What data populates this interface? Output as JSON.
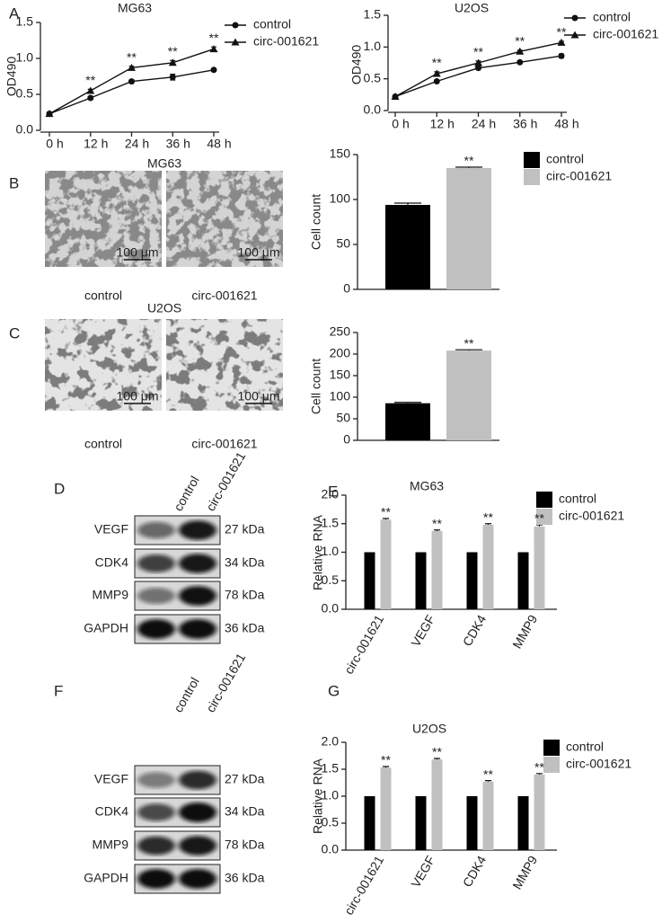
{
  "panel_labels": [
    "A",
    "B",
    "C",
    "D",
    "E",
    "F",
    "G"
  ],
  "micrographs": [
    {
      "title": "MG63",
      "scale_bar": "100 μm",
      "captions": [
        "control",
        "circ-001621"
      ]
    },
    {
      "title": "U2OS",
      "scale_bar": "100 μm",
      "captions": [
        "control",
        "circ-001621"
      ]
    }
  ],
  "blots": [
    {
      "columns": [
        "control",
        "circ-001621"
      ],
      "rows": [
        {
          "protein": "VEGF",
          "size": "27 kDa"
        },
        {
          "protein": "CDK4",
          "size": "34 kDa"
        },
        {
          "protein": "MMP9",
          "size": "78 kDa"
        },
        {
          "protein": "GAPDH",
          "size": "36 kDa"
        }
      ]
    },
    {
      "columns": [
        "control",
        "circ-001621"
      ],
      "rows": [
        {
          "protein": "VEGF",
          "size": "27 kDa"
        },
        {
          "protein": "CDK4",
          "size": "34 kDa"
        },
        {
          "protein": "MMP9",
          "size": "78 kDa"
        },
        {
          "protein": "GAPDH",
          "size": "36 kDa"
        }
      ]
    }
  ],
  "chart_data": [
    {
      "type": "line",
      "title": "MG63",
      "y_label": "OD490",
      "x": [
        0,
        12,
        24,
        36,
        48
      ],
      "xlim": [
        0,
        48
      ],
      "xticks": [
        {
          "value": 0,
          "label": "0 h"
        },
        {
          "value": 12,
          "label": "12 h"
        },
        {
          "value": 24,
          "label": "24 h"
        },
        {
          "value": 36,
          "label": "36 h"
        },
        {
          "value": 48,
          "label": "48 h"
        }
      ],
      "ylim": [
        0,
        1.5
      ],
      "yticks": [
        {
          "value": 0,
          "label": "0.0"
        },
        0.5,
        {
          "value": 1,
          "label": "1.0"
        },
        1.5
      ],
      "series": [
        {
          "name": "control",
          "color": "#111111",
          "marker": "circle",
          "values": [
            0.23,
            0.45,
            0.68,
            0.74,
            0.84
          ],
          "errors": [
            0.02,
            0.02,
            0.02,
            0.04,
            0.02
          ]
        },
        {
          "name": "circ-001621",
          "color": "#111111",
          "marker": "triangle",
          "values": [
            0.23,
            0.55,
            0.87,
            0.94,
            1.13
          ],
          "errors": [
            0.02,
            0.02,
            0.02,
            0.03,
            0.03
          ]
        }
      ],
      "annotations": [
        "**",
        "**",
        "**",
        "**"
      ]
    },
    {
      "type": "line",
      "title": "U2OS",
      "y_label": "OD490",
      "x": [
        0,
        12,
        24,
        36,
        48
      ],
      "xlim": [
        0,
        48
      ],
      "xticks": [
        {
          "value": 0,
          "label": "0 h"
        },
        {
          "value": 12,
          "label": "12 h"
        },
        {
          "value": 24,
          "label": "24 h"
        },
        {
          "value": 36,
          "label": "36 h"
        },
        {
          "value": 48,
          "label": "48 h"
        }
      ],
      "ylim": [
        0,
        1.5
      ],
      "yticks": [
        {
          "value": 0,
          "label": "0.0"
        },
        0.5,
        {
          "value": 1,
          "label": "1.0"
        },
        1.5
      ],
      "series": [
        {
          "name": "control",
          "color": "#111111",
          "marker": "circle",
          "values": [
            0.22,
            0.46,
            0.67,
            0.76,
            0.86
          ],
          "errors": [
            0.02,
            0.02,
            0.02,
            0.02,
            0.03
          ]
        },
        {
          "name": "circ-001621",
          "color": "#111111",
          "marker": "triangle",
          "values": [
            0.22,
            0.58,
            0.75,
            0.93,
            1.07
          ],
          "errors": [
            0.02,
            0.03,
            0.03,
            0.02,
            0.02
          ]
        }
      ],
      "annotations": [
        "**",
        "**",
        "**",
        "**"
      ]
    },
    {
      "type": "bar",
      "y_label": "Cell count",
      "ylim": [
        0,
        150
      ],
      "yticks": [
        0,
        50,
        100,
        150
      ],
      "series": [
        {
          "name": "control",
          "color": "#000000",
          "values": [
            94
          ],
          "errors": [
            2
          ]
        },
        {
          "name": "circ-001621",
          "color": "#c0c0c0",
          "values": [
            135
          ],
          "errors": [
            1
          ]
        }
      ],
      "legend": true,
      "annotations": [
        "**"
      ]
    },
    {
      "type": "bar",
      "y_label": "Cell count",
      "ylim": [
        0,
        250
      ],
      "yticks": [
        0,
        50,
        100,
        150,
        200,
        250
      ],
      "values": [
        86,
        208
      ],
      "errors": [
        2,
        2
      ],
      "colors": [
        "#000000",
        "#c0c0c0"
      ],
      "annotations": [
        "**"
      ]
    },
    {
      "type": "bar",
      "title": "MG63",
      "y_label": "Relative RNA",
      "categories": [
        "circ-001621",
        "VEGF",
        "CDK4",
        "MMP9"
      ],
      "ylim": [
        0,
        2
      ],
      "yticks": [
        {
          "value": 0,
          "label": "0.0"
        },
        0.5,
        {
          "value": 1,
          "label": "1.0"
        },
        1.5,
        {
          "value": 2,
          "label": "2.0"
        }
      ],
      "series": [
        {
          "name": "control",
          "color": "#000000",
          "values": [
            1,
            1,
            1,
            1
          ],
          "errors": [
            0,
            0,
            0,
            0
          ]
        },
        {
          "name": "circ-001621",
          "color": "#c0c0c0",
          "values": [
            1.57,
            1.37,
            1.48,
            1.45
          ],
          "errors": [
            0.02,
            0.02,
            0.02,
            0.03
          ]
        }
      ],
      "legend": true,
      "annotations": [
        "**",
        "**",
        "**",
        "**"
      ]
    },
    {
      "type": "bar",
      "title": "U2OS",
      "y_label": "Relative RNA",
      "categories": [
        "circ-001621",
        "VEGF",
        "CDK4",
        "MMP9"
      ],
      "ylim": [
        0,
        2
      ],
      "yticks": [
        {
          "value": 0,
          "label": "0.0"
        },
        0.5,
        {
          "value": 1,
          "label": "1.0"
        },
        1.5,
        {
          "value": 2,
          "label": "2.0"
        }
      ],
      "series": [
        {
          "name": "control",
          "color": "#000000",
          "values": [
            1,
            1,
            1,
            1
          ],
          "errors": [
            0,
            0,
            0,
            0
          ]
        },
        {
          "name": "circ-001621",
          "color": "#c0c0c0",
          "values": [
            1.53,
            1.68,
            1.27,
            1.4
          ],
          "errors": [
            0.02,
            0.02,
            0.02,
            0.02
          ]
        }
      ],
      "legend": true,
      "annotations": [
        "**",
        "**",
        "**",
        "**"
      ]
    }
  ]
}
